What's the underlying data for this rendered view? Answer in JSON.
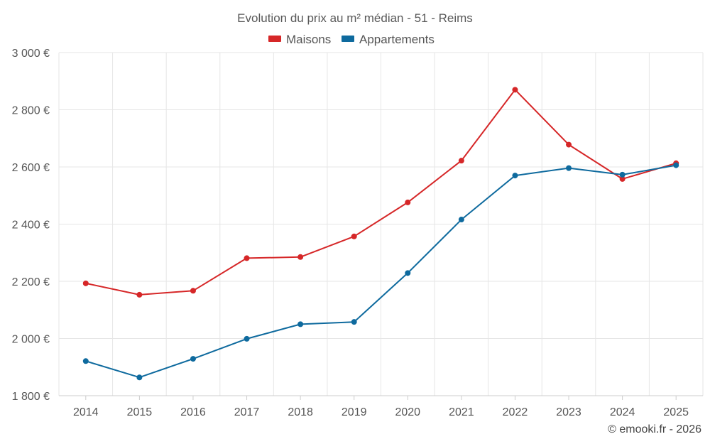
{
  "chart_data": {
    "type": "line",
    "title": "Evolution du prix au m² médian - 51 - Reims",
    "categories": [
      "2014",
      "2015",
      "2016",
      "2017",
      "2018",
      "2019",
      "2020",
      "2021",
      "2022",
      "2023",
      "2024",
      "2025"
    ],
    "series": [
      {
        "name": "Maisons",
        "color": "#d62728",
        "values": [
          2193,
          2153,
          2167,
          2281,
          2285,
          2357,
          2476,
          2622,
          2870,
          2678,
          2558,
          2613
        ]
      },
      {
        "name": "Appartements",
        "color": "#0e6a9e",
        "values": [
          1921,
          1864,
          1929,
          1999,
          2050,
          2058,
          2229,
          2416,
          2570,
          2596,
          2573,
          2606
        ]
      }
    ],
    "y_ticks": [
      "1 800 €",
      "2 000 €",
      "2 200 €",
      "2 400 €",
      "2 600 €",
      "2 800 €",
      "3 000 €"
    ],
    "ylim": [
      1800,
      3000
    ],
    "grid": true,
    "legend_position": "top-center",
    "xlabel": "",
    "ylabel": ""
  },
  "credit": "© emooki.fr - 2026"
}
